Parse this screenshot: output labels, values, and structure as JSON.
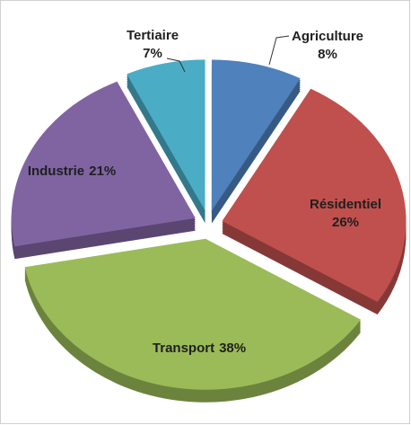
{
  "chart_data": {
    "type": "pie",
    "categories": [
      "Agriculture",
      "Résidentiel",
      "Transport",
      "Industrie",
      "Tertiaire"
    ],
    "values": [
      8,
      26,
      38,
      21,
      7
    ],
    "value_labels": [
      "8%",
      "26%",
      "38%",
      "21%",
      "7%"
    ],
    "colors": [
      "#4f81bd",
      "#c0504d",
      "#9bbb59",
      "#8064a2",
      "#4bacc6"
    ]
  }
}
